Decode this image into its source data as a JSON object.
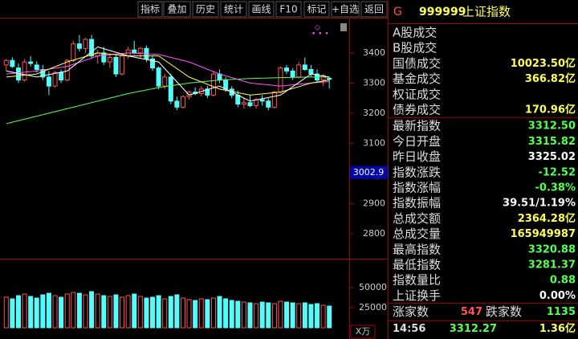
{
  "toolbar": [
    "指标",
    "叠加",
    "历史",
    "统计",
    "画线",
    "F10",
    "标记",
    "+自选",
    "返回"
  ],
  "quote": {
    "market_letter": "G",
    "code": "999999",
    "name": "上证指数",
    "sections": [
      {
        "rows": [
          {
            "label": "A股成交",
            "value": "",
            "color": "#ffff54"
          },
          {
            "label": "B股成交",
            "value": "",
            "color": "#ffff54"
          },
          {
            "label": "国债成交",
            "value": "10023.50亿",
            "color": "#ffff54"
          },
          {
            "label": "基金成交",
            "value": "366.82亿",
            "color": "#ffff54"
          },
          {
            "label": "权证成交",
            "value": "",
            "color": "#ffff54"
          },
          {
            "label": "债券成交",
            "value": "170.96亿",
            "color": "#ffff54"
          }
        ]
      },
      {
        "rows": [
          {
            "label": "最新指数",
            "value": "3312.50",
            "color": "#54ff54"
          },
          {
            "label": "今日开盘",
            "value": "3315.82",
            "color": "#54ff54"
          },
          {
            "label": "昨日收盘",
            "value": "3325.02",
            "color": "#ffffff"
          },
          {
            "label": "指数涨跌",
            "value": "-12.52",
            "color": "#54ff54"
          },
          {
            "label": "指数涨幅",
            "value": "-0.38%",
            "color": "#54ff54"
          },
          {
            "label": "指数振幅",
            "value": "39.51/1.19%",
            "color": "#ffffff"
          },
          {
            "label": "总成交额",
            "value": "2364.28亿",
            "color": "#ffff54"
          },
          {
            "label": "总成交量",
            "value": "165949987",
            "color": "#ffff54"
          },
          {
            "label": "最高指数",
            "value": "3320.88",
            "color": "#54ff54"
          },
          {
            "label": "最低指数",
            "value": "3281.37",
            "color": "#54ff54"
          },
          {
            "label": "指数量比",
            "value": "0.88",
            "color": "#54ff54"
          },
          {
            "label": "上证换手",
            "value": "0.00%",
            "color": "#ffffff"
          }
        ]
      }
    ],
    "breadth": {
      "up_label": "涨家数",
      "up_value": "547",
      "down_label": "跌家数",
      "down_value": "1135"
    },
    "tick": {
      "time": "14:56",
      "price": "3312.27",
      "volume": "1.36亿"
    }
  },
  "chart_data": {
    "type": "candlestick",
    "ylim": [
      2717,
      3517
    ],
    "yticks": [
      2800,
      2900,
      3000,
      3100,
      3200,
      3300,
      3400
    ],
    "cursor_price": 3002.9,
    "up_color": "#ff5454",
    "down_color": "#54fcfc",
    "open": [
      3360,
      3375,
      3350,
      3310,
      3370,
      3360,
      3345,
      3320,
      3290,
      3335,
      3310,
      3375,
      3430,
      3415,
      3445,
      3390,
      3400,
      3370,
      3385,
      3330,
      3390,
      3410,
      3400,
      3415,
      3380,
      3350,
      3290,
      3320,
      3240,
      3220,
      3255,
      3270,
      3265,
      3280,
      3260,
      3330,
      3310,
      3280,
      3260,
      3230,
      3235,
      3225,
      3245,
      3240,
      3220,
      3270,
      3350,
      3340,
      3320,
      3360,
      3345,
      3330,
      3310,
      3315.82
    ],
    "high": [
      3380,
      3385,
      3365,
      3380,
      3390,
      3372,
      3360,
      3340,
      3340,
      3345,
      3380,
      3440,
      3460,
      3450,
      3460,
      3410,
      3420,
      3395,
      3395,
      3400,
      3420,
      3440,
      3420,
      3425,
      3390,
      3355,
      3330,
      3330,
      3255,
      3260,
      3275,
      3285,
      3290,
      3290,
      3340,
      3345,
      3320,
      3290,
      3275,
      3250,
      3260,
      3250,
      3260,
      3250,
      3275,
      3355,
      3360,
      3350,
      3370,
      3385,
      3360,
      3345,
      3330,
      3320.88
    ],
    "low": [
      3340,
      3350,
      3300,
      3305,
      3355,
      3335,
      3310,
      3260,
      3285,
      3300,
      3305,
      3370,
      3405,
      3400,
      3380,
      3365,
      3360,
      3350,
      3320,
      3325,
      3380,
      3395,
      3380,
      3370,
      3340,
      3280,
      3280,
      3230,
      3210,
      3215,
      3245,
      3260,
      3255,
      3250,
      3255,
      3300,
      3270,
      3250,
      3220,
      3215,
      3220,
      3215,
      3225,
      3210,
      3215,
      3265,
      3330,
      3310,
      3315,
      3340,
      3320,
      3300,
      3290,
      3281.37
    ],
    "close": [
      3375,
      3355,
      3310,
      3370,
      3365,
      3345,
      3320,
      3290,
      3335,
      3310,
      3375,
      3430,
      3415,
      3445,
      3390,
      3400,
      3370,
      3385,
      3330,
      3390,
      3410,
      3400,
      3415,
      3380,
      3350,
      3290,
      3320,
      3240,
      3220,
      3255,
      3270,
      3265,
      3280,
      3260,
      3330,
      3310,
      3280,
      3260,
      3230,
      3235,
      3225,
      3245,
      3240,
      3220,
      3270,
      3350,
      3340,
      3320,
      3360,
      3345,
      3330,
      3310,
      3325,
      3312.5
    ],
    "ma_lines": {
      "x": [
        0,
        5,
        10,
        15,
        20,
        25,
        30,
        35,
        40,
        45,
        50,
        53
      ],
      "series": [
        {
          "color": "#54ff54",
          "values": [
            3165,
            3190,
            3215,
            3240,
            3265,
            3285,
            3300,
            3310,
            3315,
            3318,
            3320,
            3320
          ]
        },
        {
          "color": "#ff54ff",
          "values": [
            3330,
            3340,
            3355,
            3390,
            3400,
            3395,
            3370,
            3330,
            3300,
            3290,
            3300,
            3305
          ]
        },
        {
          "color": "#ffff54",
          "values": [
            3320,
            3330,
            3370,
            3400,
            3390,
            3390,
            3320,
            3280,
            3260,
            3270,
            3300,
            3310
          ]
        },
        {
          "color": "#ffffff",
          "values": [
            3340,
            3320,
            3340,
            3420,
            3390,
            3370,
            3260,
            3290,
            3240,
            3260,
            3330,
            3320
          ]
        }
      ]
    },
    "volume": {
      "unit_label": "X万",
      "ylim": [
        0,
        85000
      ],
      "yticks": [
        25000,
        50000
      ],
      "values": [
        38000,
        36000,
        40000,
        42000,
        39000,
        37000,
        41000,
        43000,
        40000,
        38000,
        42000,
        44000,
        43000,
        41000,
        45000,
        42000,
        40000,
        39000,
        41000,
        38000,
        40000,
        42000,
        39000,
        37000,
        38000,
        40000,
        36000,
        39000,
        41000,
        37000,
        35000,
        34000,
        36000,
        35000,
        37000,
        39000,
        36000,
        34000,
        33000,
        32000,
        31000,
        30000,
        32000,
        31000,
        30000,
        33000,
        32000,
        31000,
        30000,
        31000,
        29000,
        30000,
        28000,
        27000
      ]
    }
  }
}
